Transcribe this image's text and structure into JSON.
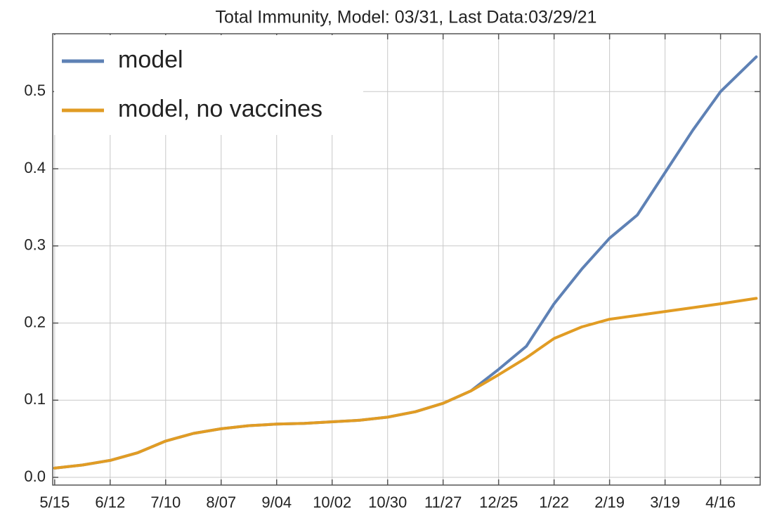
{
  "chart_data": {
    "type": "line",
    "title": "Total  Immunity, Model: 03/31, Last Data:03/29/21",
    "x": [
      0,
      14,
      28,
      42,
      56,
      70,
      84,
      98,
      112,
      126,
      140,
      154,
      168,
      182,
      196,
      210,
      224,
      238,
      252,
      266,
      280,
      294,
      308,
      322,
      336,
      354
    ],
    "series": [
      {
        "name": "model",
        "color": "#5e81b5",
        "values": [
          0.012,
          0.016,
          0.022,
          0.032,
          0.047,
          0.057,
          0.063,
          0.067,
          0.069,
          0.07,
          0.072,
          0.074,
          0.078,
          0.085,
          0.096,
          0.112,
          0.14,
          0.17,
          0.225,
          0.27,
          0.31,
          0.34,
          0.395,
          0.45,
          0.5,
          0.545
        ]
      },
      {
        "name": "model, no vaccines",
        "color": "#e19c24",
        "values": [
          0.012,
          0.016,
          0.022,
          0.032,
          0.047,
          0.057,
          0.063,
          0.067,
          0.069,
          0.07,
          0.072,
          0.074,
          0.078,
          0.085,
          0.096,
          0.112,
          0.133,
          0.155,
          0.18,
          0.195,
          0.205,
          0.21,
          0.215,
          0.22,
          0.225,
          0.232
        ]
      }
    ],
    "xlim": [
      -1,
      356
    ],
    "xticks": [
      {
        "value": 0,
        "label": "5/15"
      },
      {
        "value": 28,
        "label": "6/12"
      },
      {
        "value": 56,
        "label": "7/10"
      },
      {
        "value": 84,
        "label": "8/07"
      },
      {
        "value": 112,
        "label": "9/04"
      },
      {
        "value": 140,
        "label": "10/02"
      },
      {
        "value": 168,
        "label": "10/30"
      },
      {
        "value": 196,
        "label": "11/27"
      },
      {
        "value": 224,
        "label": "12/25"
      },
      {
        "value": 252,
        "label": "1/22"
      },
      {
        "value": 280,
        "label": "2/19"
      },
      {
        "value": 308,
        "label": "3/19"
      },
      {
        "value": 336,
        "label": "4/16"
      }
    ],
    "ylim": [
      -0.01,
      0.575
    ],
    "yticks": [
      {
        "value": 0,
        "label": "0.0"
      },
      0.1,
      0.2,
      0.3,
      0.4,
      0.5
    ],
    "grid": true,
    "legend": "upper-left"
  }
}
